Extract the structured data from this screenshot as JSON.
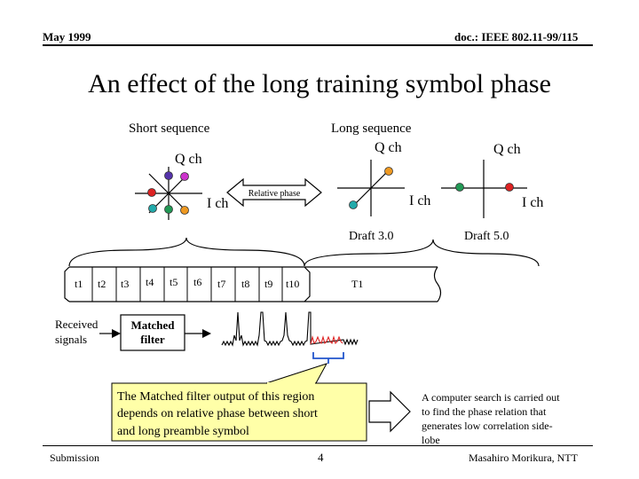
{
  "header": {
    "date": "May 1999",
    "doc_id": "doc.: IEEE 802.11-99/115"
  },
  "title": "An effect of the long training symbol phase",
  "constellations": {
    "short_label": "Short sequence",
    "long_label": "Long sequence",
    "q_axis": "Q ch",
    "i_axis": "I ch",
    "relative_phase": "Relative phase",
    "draft3": "Draft 3.0",
    "draft5": "Draft 5.0",
    "dot_colors": {
      "magenta": "#CC33CC",
      "purple": "#5533AA",
      "red": "#DD2222",
      "teal": "#22AAAA",
      "green": "#229955",
      "orange": "#EE9922"
    }
  },
  "timeline": {
    "short_cells": [
      "t1",
      "t2",
      "t3",
      "t4",
      "t5",
      "t6",
      "t7",
      "t8",
      "t9",
      "t10"
    ],
    "long_cell": "T1"
  },
  "processing": {
    "received_signals": [
      "Received",
      "signals"
    ],
    "matched_filter": [
      "Matched",
      "filter"
    ]
  },
  "notes": {
    "callout_lines": [
      "The Matched filter output of this region",
      "depends on relative phase between short",
      "and long preamble symbol"
    ],
    "search_lines": [
      "A computer search is carried out",
      "to find the phase relation that",
      "generates low correlation side-",
      "lobe"
    ],
    "callout_fill": "#FFFFA8",
    "highlight_color": "#DD2222",
    "bracket_color": "#2255CC"
  },
  "footer": {
    "left": "Submission",
    "page": "4",
    "author": "Masahiro Morikura, NTT"
  }
}
